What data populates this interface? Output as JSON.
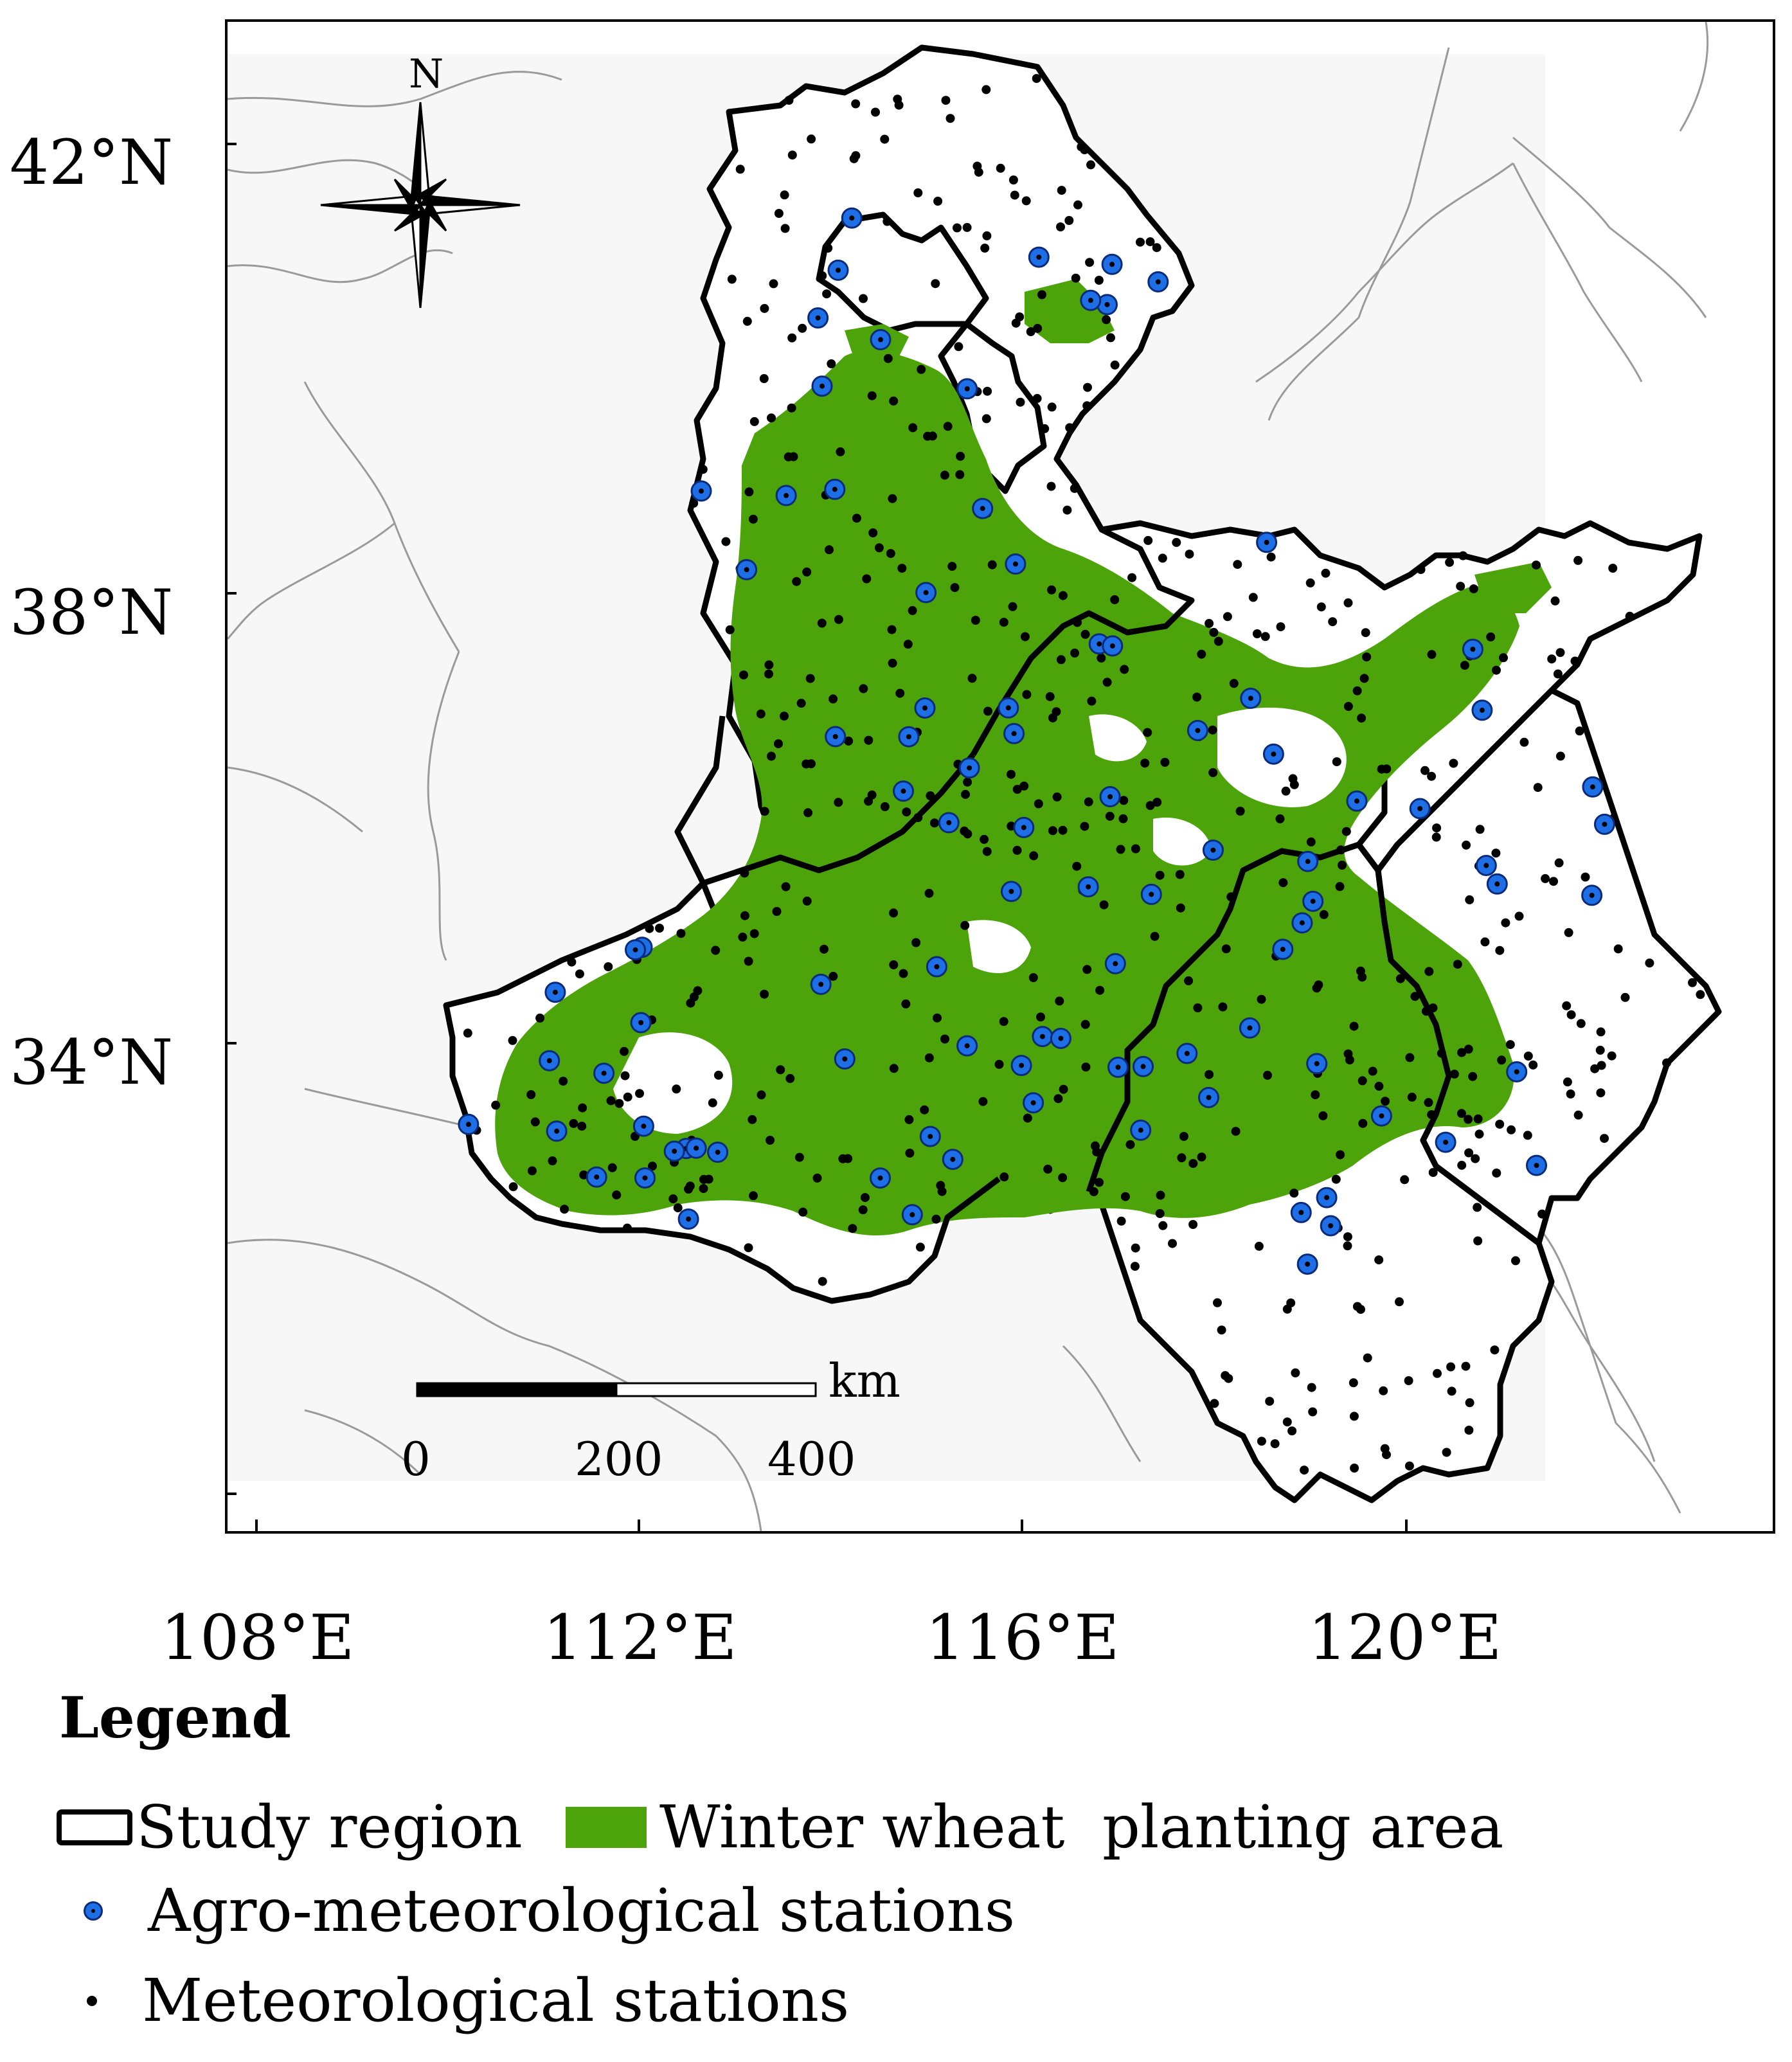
{
  "map": {
    "north_label": "N",
    "lat_labels": [
      "42°N",
      "38°N",
      "34°N"
    ],
    "lon_labels": [
      "108°E",
      "112°E",
      "116°E",
      "120°E"
    ],
    "scale_unit": "km",
    "scale_ticks": [
      "0",
      "200",
      "400"
    ]
  },
  "legend": {
    "title": "Legend",
    "items": [
      {
        "label": "Study region"
      },
      {
        "label": "Winter wheat  planting area",
        "color": "#4ca30a"
      },
      {
        "label": "Agro-meteorological stations",
        "color": "#1e6fe6"
      },
      {
        "label": "Meteorological stations",
        "color": "#000000"
      }
    ]
  },
  "colors": {
    "study_region_fill": "#ffffff",
    "study_region_border": "#000000",
    "wheat": "#4ca30a",
    "background_land": "#f7f7f7",
    "province_lines": "#9a9a9a"
  }
}
